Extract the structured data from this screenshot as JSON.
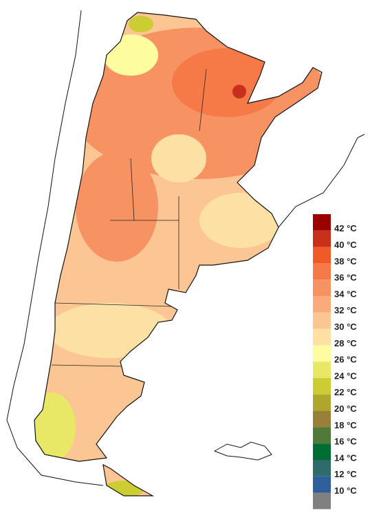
{
  "legend": {
    "labels": [
      "42 °C",
      "40 °C",
      "38 °C",
      "36 °C",
      "34 °C",
      "32 °C",
      "30 °C",
      "28 °C",
      "26 °C",
      "24 °C",
      "22 °C",
      "20 °C",
      "18 °C",
      "16 °C",
      "14 °C",
      "12 °C",
      "10 °C"
    ],
    "colors": [
      "#9b0000",
      "#c8301c",
      "#f05a28",
      "#f57a48",
      "#f79262",
      "#f9ab7c",
      "#fbc594",
      "#fde0a4",
      "#fdfda0",
      "#e8e866",
      "#cccc33",
      "#b0a62c",
      "#98803a",
      "#4f7a3a",
      "#006b33",
      "#2f6b6b",
      "#2f5f9a",
      "#808080"
    ]
  }
}
